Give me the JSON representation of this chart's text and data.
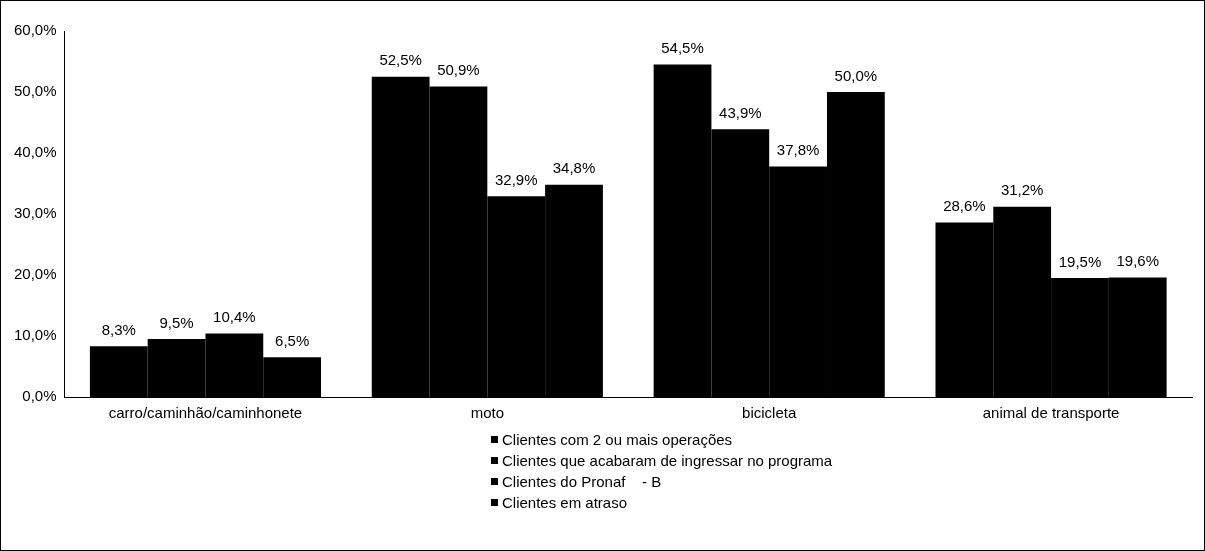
{
  "chart_data": {
    "type": "bar",
    "categories": [
      "carro/caminhão/caminhonete",
      "moto",
      "bicicleta",
      "animal de transporte"
    ],
    "series": [
      {
        "name": "Clientes com 2 ou mais operações",
        "color": "#000000",
        "values": [
          8.3,
          52.5,
          54.5,
          28.6
        ],
        "value_labels": [
          "8,3%",
          "52,5%",
          "54,5%",
          "28,6%"
        ]
      },
      {
        "name": "Clientes que acabaram de ingressar no programa",
        "color": "#000000",
        "values": [
          9.5,
          50.9,
          43.9,
          31.2
        ],
        "value_labels": [
          "9,5%",
          "50,9%",
          "43,9%",
          "31,2%"
        ]
      },
      {
        "name": "Clientes do Pronaf    - B",
        "color": "#000000",
        "values": [
          10.4,
          32.9,
          37.8,
          19.5
        ],
        "value_labels": [
          "10,4%",
          "32,9%",
          "37,8%",
          "19,5%"
        ]
      },
      {
        "name": "Clientes em atraso",
        "color": "#000000",
        "values": [
          6.5,
          34.8,
          50.0,
          19.6
        ],
        "value_labels": [
          "6,5%",
          "34,8%",
          "50,0%",
          "19,6%"
        ]
      }
    ],
    "ylim": [
      0,
      60
    ],
    "yticks": [
      {
        "value": 0,
        "label": "0,0%"
      },
      {
        "value": 10,
        "label": "10,0%"
      },
      {
        "value": 20,
        "label": "20,0%"
      },
      {
        "value": 30,
        "label": "30,0%"
      },
      {
        "value": 40,
        "label": "40,0%"
      },
      {
        "value": 50,
        "label": "50,0%"
      },
      {
        "value": 60,
        "label": "60,0%"
      }
    ],
    "grid": false,
    "legend": "bottom"
  }
}
